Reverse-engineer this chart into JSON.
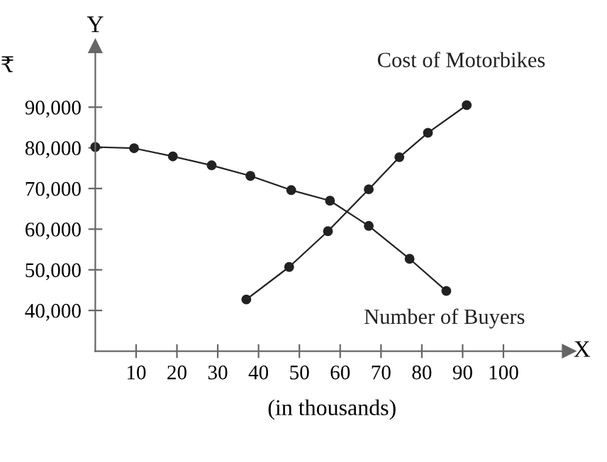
{
  "chart_data": {
    "type": "line",
    "xlabel": "(in thousands)",
    "ylabel": "₹",
    "annotations": [
      "Y",
      "X"
    ],
    "series": [
      {
        "name": "Number of Buyers",
        "color": "#222222",
        "x": [
          0,
          9.5,
          19,
          28.5,
          38,
          48,
          57.5,
          67,
          77,
          86
        ],
        "values": [
          80200,
          79900,
          77900,
          75700,
          73100,
          69600,
          67000,
          60800,
          52700,
          44800
        ]
      },
      {
        "name": "Cost of Motorbikes",
        "color": "#222222",
        "x": [
          37,
          47.5,
          57,
          67,
          74.5,
          81.5,
          91
        ],
        "values": [
          42700,
          50700,
          59500,
          69800,
          77700,
          83700,
          90500
        ]
      }
    ],
    "xlim": [
      0,
      116
    ],
    "ylim": [
      30000,
      105000
    ],
    "xticks": [
      10,
      20,
      30,
      40,
      50,
      60,
      70,
      80,
      90,
      100
    ],
    "yticks": [
      {
        "value": 40000,
        "label": "40,000"
      },
      {
        "value": 50000,
        "label": "50,000"
      },
      {
        "value": 60000,
        "label": "60,000"
      },
      {
        "value": 70000,
        "label": "70,000"
      },
      {
        "value": 80000,
        "label": "80,000"
      },
      {
        "value": 90000,
        "label": "90,000"
      }
    ],
    "marker": "circle",
    "line_style": "solid",
    "grid": false,
    "legend": false
  }
}
